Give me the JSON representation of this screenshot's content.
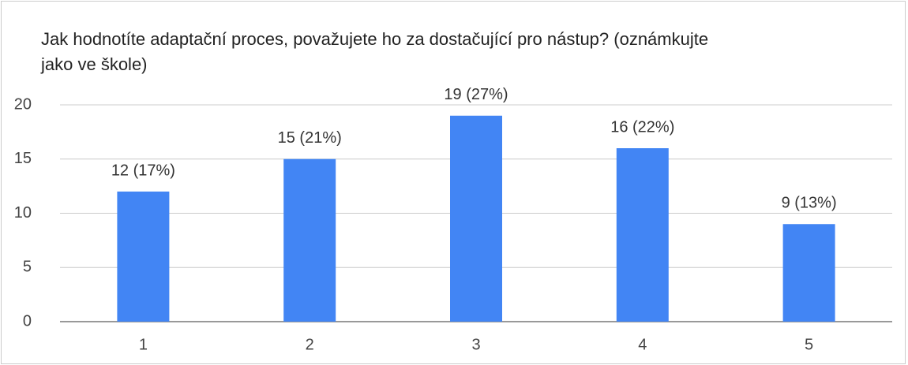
{
  "chart_data": {
    "type": "bar",
    "title": "Jak hodnotíte adaptační proces, považujete ho za dostačující pro nástup? (oznámkujte jako ve škole)",
    "categories": [
      "1",
      "2",
      "3",
      "4",
      "5"
    ],
    "values": [
      12,
      15,
      19,
      16,
      9
    ],
    "value_labels": [
      "12 (17%)",
      "15 (21%)",
      "19 (27%)",
      "16 (22%)",
      "9 (13%)"
    ],
    "color": "#4285f4",
    "ylim": [
      0,
      20
    ],
    "yticks": [
      0,
      5,
      10,
      15,
      20
    ],
    "grid": true
  }
}
